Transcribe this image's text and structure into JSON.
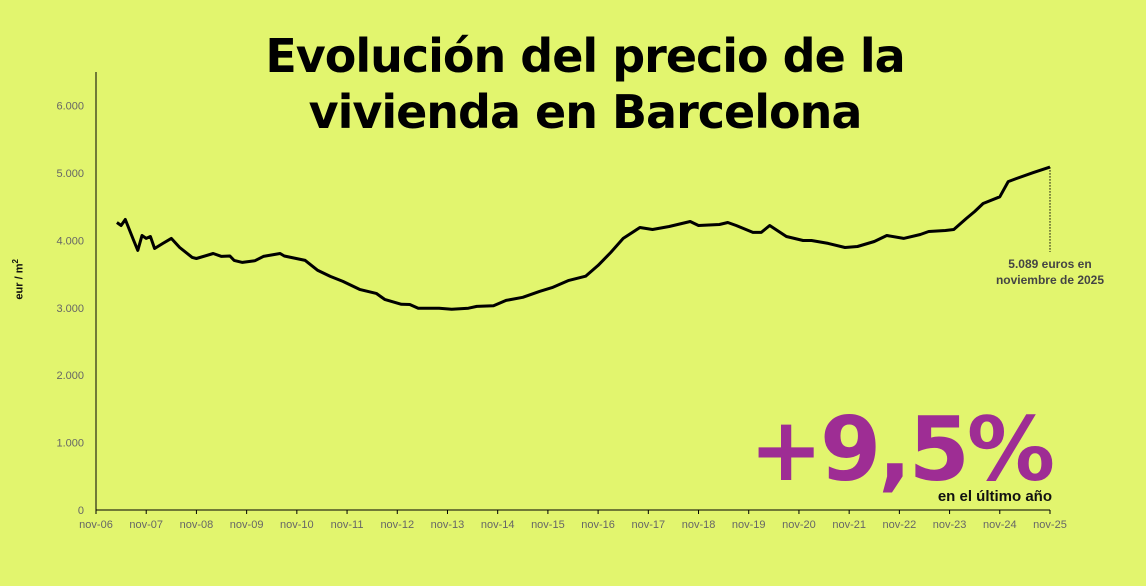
{
  "accent": "#9e2d94",
  "background": "#e2f56e",
  "highlight": {
    "value": "+9,5%",
    "caption": "en el último año"
  },
  "chart_data": {
    "type": "line",
    "title": "Evolución del precio de la vivienda en Barcelona",
    "ylabel": "eur / m²",
    "ylabel_base": "eur / m",
    "ylabel_sup": "2",
    "ylim": [
      0,
      6500
    ],
    "yticks": [
      0,
      1000,
      2000,
      3000,
      4000,
      5000,
      6000
    ],
    "ytick_labels": [
      "0",
      "1.000",
      "2.000",
      "3.000",
      "4.000",
      "5.000",
      "6.000"
    ],
    "xlim": [
      "2006-11",
      "2025-11"
    ],
    "xtick_labels": [
      "nov-06",
      "nov-07",
      "nov-08",
      "nov-09",
      "nov-10",
      "nov-11",
      "nov-12",
      "nov-13",
      "nov-14",
      "nov-15",
      "nov-16",
      "nov-17",
      "nov-18",
      "nov-19",
      "nov-20",
      "nov-21",
      "nov-22",
      "nov-23",
      "nov-24",
      "nov-25"
    ],
    "grid": false,
    "line_color": "#000000",
    "annotation": {
      "x": "2025-11",
      "value": 5089,
      "line1": "5.089 euros en",
      "line2": "noviembre de 2025"
    },
    "series": [
      {
        "x": [
          "2007-04",
          "2007-05",
          "2007-06",
          "2007-08",
          "2007-09",
          "2007-10",
          "2007-11",
          "2007-12",
          "2008-01",
          "2008-03",
          "2008-05",
          "2008-07",
          "2008-10",
          "2008-11",
          "2009-03",
          "2009-05",
          "2009-07",
          "2009-08",
          "2009-10",
          "2010-01",
          "2010-03",
          "2010-07",
          "2010-08",
          "2011-01",
          "2011-04",
          "2011-07",
          "2011-10",
          "2012-02",
          "2012-06",
          "2012-08",
          "2012-12",
          "2013-02",
          "2013-04",
          "2013-09",
          "2013-12",
          "2014-04",
          "2014-06",
          "2014-10",
          "2015-01",
          "2015-05",
          "2015-09",
          "2015-12",
          "2016-04",
          "2016-08",
          "2016-11",
          "2017-02",
          "2017-05",
          "2017-09",
          "2017-12",
          "2018-04",
          "2018-09",
          "2018-11",
          "2019-04",
          "2019-06",
          "2019-08",
          "2019-12",
          "2020-02",
          "2020-04",
          "2020-08",
          "2020-12",
          "2021-02",
          "2021-06",
          "2021-10",
          "2022-01",
          "2022-05",
          "2022-08",
          "2022-12",
          "2023-04",
          "2023-06",
          "2023-10",
          "2023-12",
          "2024-03",
          "2024-05",
          "2024-07",
          "2024-11",
          "2025-01",
          "2025-03",
          "2025-07",
          "2025-11"
        ],
        "values": [
          4267,
          4222,
          4311,
          4000,
          3852,
          4074,
          4030,
          4059,
          3881,
          3956,
          4030,
          3896,
          3748,
          3733,
          3807,
          3763,
          3770,
          3704,
          3674,
          3700,
          3763,
          3807,
          3770,
          3704,
          3556,
          3467,
          3393,
          3274,
          3215,
          3126,
          3052,
          3050,
          2993,
          2993,
          2978,
          2995,
          3022,
          3030,
          3111,
          3156,
          3244,
          3300,
          3407,
          3470,
          3630,
          3822,
          4030,
          4193,
          4163,
          4207,
          4281,
          4222,
          4237,
          4267,
          4222,
          4119,
          4120,
          4222,
          4059,
          4000,
          4000,
          3956,
          3896,
          3911,
          3985,
          4074,
          4030,
          4089,
          4133,
          4148,
          4163,
          4326,
          4430,
          4548,
          4648,
          4874,
          4919,
          5007,
          5089
        ]
      }
    ]
  }
}
